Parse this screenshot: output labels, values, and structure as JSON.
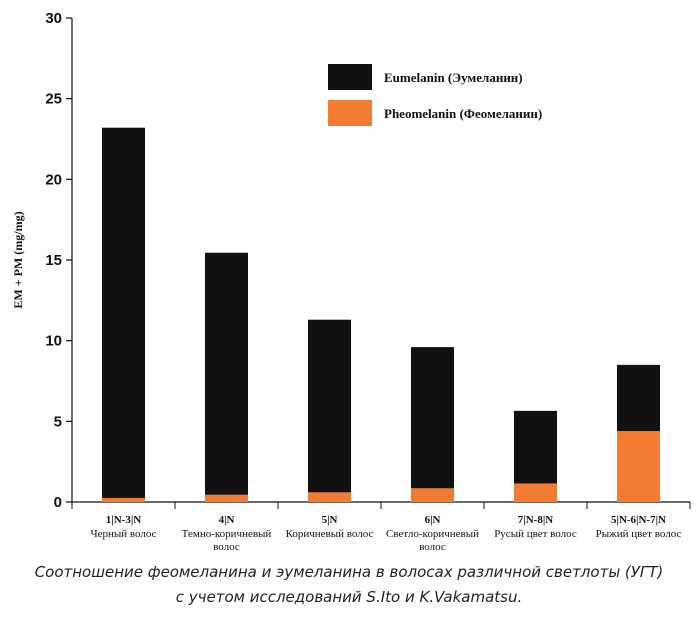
{
  "chart_data": {
    "type": "bar",
    "stacked": true,
    "ylabel": "EM + PM (mg/mg)",
    "ylim": [
      0,
      30
    ],
    "yticks": [
      0,
      5,
      10,
      15,
      20,
      25,
      30
    ],
    "categories": [
      {
        "code": "1|N-3|N",
        "name": [
          "Черный волос"
        ]
      },
      {
        "code": "4|N",
        "name": [
          "Темно-коричневый",
          "волос"
        ]
      },
      {
        "code": "5|N",
        "name": [
          "Коричневый волос"
        ]
      },
      {
        "code": "6|N",
        "name": [
          "Светло-коричневый",
          "волос"
        ]
      },
      {
        "code": "7|N-8|N",
        "name": [
          "Русый цвет волос"
        ]
      },
      {
        "code": "5|N-6|N-7|N",
        "name": [
          "Рыжий цвет волос"
        ]
      }
    ],
    "series": [
      {
        "name": "Pheomelanin (Феомеланин)",
        "color": "#f47b32",
        "values": [
          0.25,
          0.45,
          0.6,
          0.85,
          1.15,
          4.4
        ]
      },
      {
        "name": "Eumelanin (Эумеланин)",
        "color": "#111111",
        "values": [
          22.95,
          15.0,
          10.7,
          8.75,
          4.5,
          4.1
        ]
      }
    ],
    "legend_order": [
      1,
      0
    ],
    "legend_position": "top-right"
  },
  "caption": {
    "line1": "Соотношение феомеланина и эумеланина в волосах различной светлоты (УГТ)",
    "line2": "с учетом исследований S.Ito и K.Vakamatsu."
  }
}
